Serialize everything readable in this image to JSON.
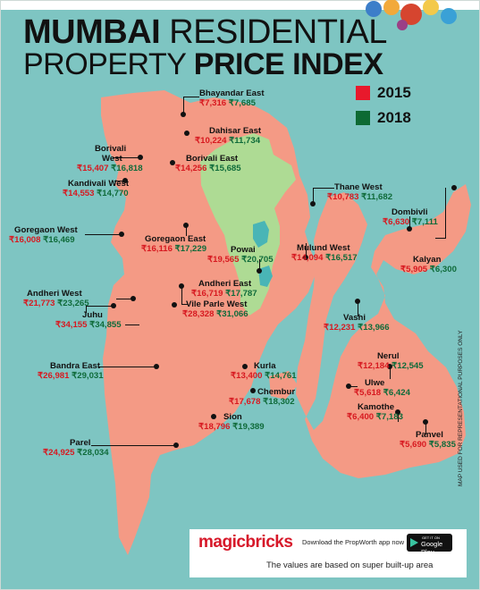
{
  "title": {
    "line1_bold": "MUMBAI",
    "line1_light": "RESIDENTIAL",
    "line2_light": "PROPERTY",
    "line2_bold": "PRICE INDEX"
  },
  "legend": [
    {
      "label": "2015",
      "color": "#e8192c"
    },
    {
      "label": "2018",
      "color": "#0d6a33"
    }
  ],
  "colors": {
    "water": "#7ec5c2",
    "land": "#f49a85",
    "park": "#aedb94",
    "price_2015": "#d71920",
    "price_2018": "#0f6b3a"
  },
  "locations": [
    {
      "name": "Bhayandar East",
      "p2015": "₹7,316",
      "p2018": "₹7,685"
    },
    {
      "name": "Dahisar East",
      "p2015": "₹10,224",
      "p2018": "₹11,734"
    },
    {
      "name": "Borivali West",
      "name_line1": "Borivali",
      "name_line2": "West",
      "p2015": "₹15,407",
      "p2018": "₹16,818"
    },
    {
      "name": "Borivali East",
      "p2015": "₹14,256",
      "p2018": "₹15,685"
    },
    {
      "name": "Kandivali West",
      "p2015": "₹14,553",
      "p2018": "₹14,770"
    },
    {
      "name": "Thane West",
      "p2015": "₹10,783",
      "p2018": "₹11,682"
    },
    {
      "name": "Dombivli",
      "p2015": "₹6,630",
      "p2018": "₹7,111"
    },
    {
      "name": "Goregaon West",
      "p2015": "₹16,008",
      "p2018": "₹16,469"
    },
    {
      "name": "Goregaon East",
      "p2015": "₹16,116",
      "p2018": "₹17,229"
    },
    {
      "name": "Powai",
      "p2015": "₹19,565",
      "p2018": "₹20,705"
    },
    {
      "name": "Mulund West",
      "p2015": "₹14,094",
      "p2018": "₹16,517"
    },
    {
      "name": "Kalyan",
      "p2015": "₹5,905",
      "p2018": "₹6,300"
    },
    {
      "name": "Andheri West",
      "p2015": "₹21,773",
      "p2018": "₹23,265"
    },
    {
      "name": "Andheri East",
      "p2015": "₹16,719",
      "p2018": "₹17,787"
    },
    {
      "name": "Juhu",
      "p2015": "₹34,155",
      "p2018": "₹34,855"
    },
    {
      "name": "Vile Parle West",
      "p2015": "₹28,328",
      "p2018": "₹31,066"
    },
    {
      "name": "Vashi",
      "p2015": "₹12,231",
      "p2018": "₹13,966"
    },
    {
      "name": "Bandra East",
      "p2015": "₹26,981",
      "p2018": "₹29,031"
    },
    {
      "name": "Kurla",
      "p2015": "₹13,400",
      "p2018": "₹14,761"
    },
    {
      "name": "Nerul",
      "p2015": "₹12,184",
      "p2018": "₹12,545"
    },
    {
      "name": "Ulwe",
      "p2015": "₹5,618",
      "p2018": "₹6,424"
    },
    {
      "name": "Chembur",
      "p2015": "₹17,678",
      "p2018": "₹18,302"
    },
    {
      "name": "Sion",
      "p2015": "₹18,796",
      "p2018": "₹19,389"
    },
    {
      "name": "Kamothe",
      "p2015": "₹6,400",
      "p2018": "₹7,183"
    },
    {
      "name": "Panvel",
      "p2015": "₹5,690",
      "p2018": "₹5,835"
    },
    {
      "name": "Parel",
      "p2015": "₹24,925",
      "p2018": "₹28,034"
    }
  ],
  "footer": {
    "brand": "magicbricks",
    "download_text": "Download the PropWorth app now",
    "store_small": "GET IT ON",
    "store_big": "Google Play",
    "note": "The values are based on super built-up area"
  },
  "disclaimer": "MAP USED FOR REPRESENTATIONAL PURPOSES ONLY"
}
